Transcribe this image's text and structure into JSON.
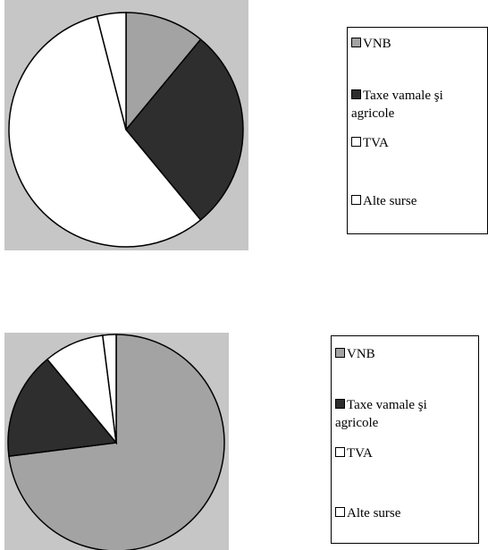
{
  "chart_data": [
    {
      "type": "pie",
      "categories": [
        "VNB",
        "Taxe vamale şi agricole",
        "TVA",
        "Alte surse"
      ],
      "values": [
        11,
        28,
        57,
        4
      ],
      "colors": [
        "#a3a3a3",
        "#2e2e2e",
        "#ffffff",
        "#ffffff"
      ],
      "legend": "right"
    },
    {
      "type": "pie",
      "categories": [
        "VNB",
        "Taxe vamale şi agricole",
        "TVA",
        "Alte surse"
      ],
      "values": [
        73,
        16,
        9,
        2
      ],
      "colors": [
        "#a3a3a3",
        "#2e2e2e",
        "#ffffff",
        "#ffffff"
      ],
      "legend": "right"
    }
  ]
}
